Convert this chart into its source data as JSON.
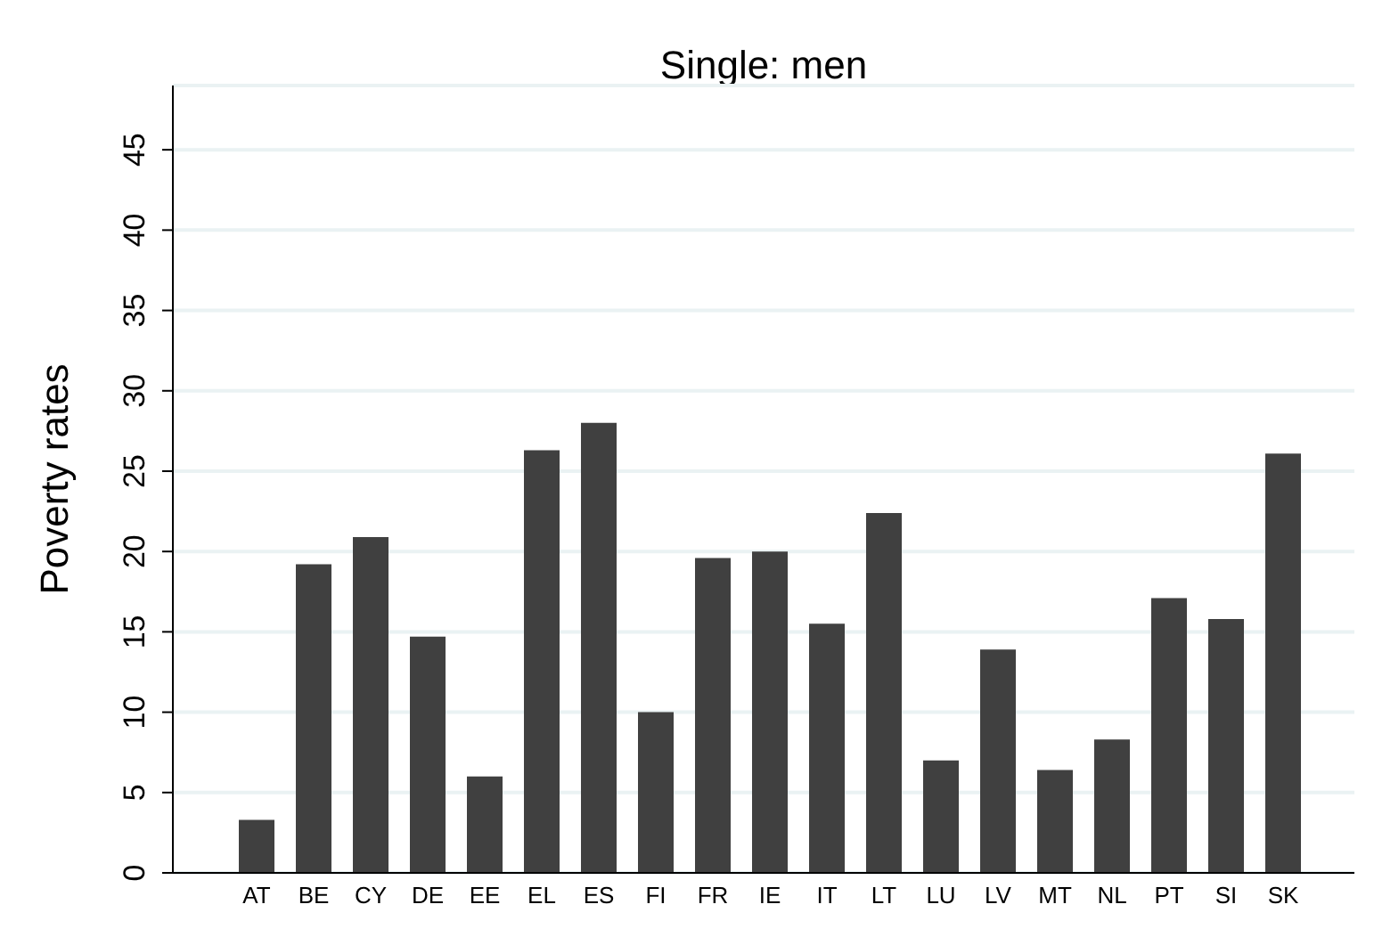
{
  "chart_data": {
    "type": "bar",
    "title": "Single: men",
    "ylabel": "Poverty rates",
    "categories": [
      "AT",
      "BE",
      "CY",
      "DE",
      "EE",
      "EL",
      "ES",
      "FI",
      "FR",
      "IE",
      "IT",
      "LT",
      "LU",
      "LV",
      "MT",
      "NL",
      "PT",
      "SI",
      "SK"
    ],
    "values": [
      3.3,
      19.2,
      20.9,
      14.7,
      6.0,
      26.3,
      28.0,
      10.0,
      19.6,
      20.0,
      15.5,
      22.4,
      7.0,
      13.9,
      6.4,
      8.3,
      17.1,
      15.8,
      26.1
    ],
    "color": "#404040",
    "ylim": [
      0,
      49
    ],
    "yticks": [
      0,
      5,
      10,
      15,
      20,
      25,
      30,
      35,
      40,
      45
    ],
    "grid": "y"
  }
}
